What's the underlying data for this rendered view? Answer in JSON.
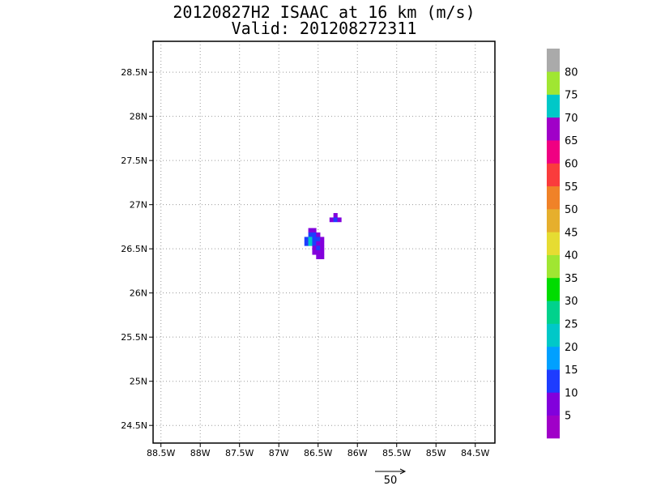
{
  "title": "20120827H2 ISAAC at 16 km (m/s)",
  "subtitle": "Valid: 201208272311",
  "chart_data": {
    "type": "heatmap",
    "title": "20120827H2 ISAAC at 16 km (m/s)",
    "subtitle": "Valid: 201208272311",
    "xlabel": "",
    "ylabel": "",
    "xlim": [
      -88.6,
      -84.25
    ],
    "ylim": [
      24.3,
      28.85
    ],
    "grid": true,
    "x_ticks": [
      {
        "value": -88.5,
        "label": "88.5W"
      },
      {
        "value": -88.0,
        "label": "88W"
      },
      {
        "value": -87.5,
        "label": "87.5W"
      },
      {
        "value": -87.0,
        "label": "87W"
      },
      {
        "value": -86.5,
        "label": "86.5W"
      },
      {
        "value": -86.0,
        "label": "86W"
      },
      {
        "value": -85.5,
        "label": "85.5W"
      },
      {
        "value": -85.0,
        "label": "85W"
      },
      {
        "value": -84.5,
        "label": "84.5W"
      }
    ],
    "y_ticks": [
      {
        "value": 24.5,
        "label": "24.5N"
      },
      {
        "value": 25.0,
        "label": "25N"
      },
      {
        "value": 25.5,
        "label": "25.5N"
      },
      {
        "value": 26.0,
        "label": "26N"
      },
      {
        "value": 26.5,
        "label": "26.5N"
      },
      {
        "value": 27.0,
        "label": "27N"
      },
      {
        "value": 27.5,
        "label": "27.5N"
      },
      {
        "value": 28.0,
        "label": "28N"
      },
      {
        "value": 28.5,
        "label": "28.5N"
      }
    ],
    "cells": [
      {
        "lon": -86.6,
        "lat": 26.71,
        "value": 7
      },
      {
        "lon": -86.55,
        "lat": 26.71,
        "value": 7
      },
      {
        "lon": -86.6,
        "lat": 26.66,
        "value": 12
      },
      {
        "lon": -86.55,
        "lat": 26.66,
        "value": 12
      },
      {
        "lon": -86.5,
        "lat": 26.66,
        "value": 7
      },
      {
        "lon": -86.65,
        "lat": 26.61,
        "value": 12
      },
      {
        "lon": -86.6,
        "lat": 26.61,
        "value": 22
      },
      {
        "lon": -86.55,
        "lat": 26.61,
        "value": 12
      },
      {
        "lon": -86.5,
        "lat": 26.61,
        "value": 12
      },
      {
        "lon": -86.45,
        "lat": 26.61,
        "value": 7
      },
      {
        "lon": -86.65,
        "lat": 26.56,
        "value": 12
      },
      {
        "lon": -86.6,
        "lat": 26.56,
        "value": 22
      },
      {
        "lon": -86.55,
        "lat": 26.56,
        "value": 12
      },
      {
        "lon": -86.5,
        "lat": 26.56,
        "value": 7
      },
      {
        "lon": -86.45,
        "lat": 26.56,
        "value": 7
      },
      {
        "lon": -86.55,
        "lat": 26.51,
        "value": 7
      },
      {
        "lon": -86.5,
        "lat": 26.51,
        "value": 12
      },
      {
        "lon": -86.45,
        "lat": 26.51,
        "value": 7
      },
      {
        "lon": -86.55,
        "lat": 26.46,
        "value": 7
      },
      {
        "lon": -86.5,
        "lat": 26.46,
        "value": 7
      },
      {
        "lon": -86.45,
        "lat": 26.46,
        "value": 7
      },
      {
        "lon": -86.5,
        "lat": 26.41,
        "value": 7
      },
      {
        "lon": -86.45,
        "lat": 26.41,
        "value": 7
      },
      {
        "lon": -86.28,
        "lat": 26.88,
        "value": 7
      },
      {
        "lon": -86.33,
        "lat": 26.83,
        "value": 7
      },
      {
        "lon": -86.28,
        "lat": 26.83,
        "value": 12
      },
      {
        "lon": -86.23,
        "lat": 26.83,
        "value": 7
      }
    ],
    "colorbar": {
      "labels": [
        "5",
        "10",
        "15",
        "20",
        "25",
        "30",
        "35",
        "40",
        "45",
        "50",
        "55",
        "60",
        "65",
        "70",
        "75",
        "80"
      ],
      "colors": [
        "#a000c8",
        "#8200dc",
        "#1e3cff",
        "#00a0ff",
        "#00c8c8",
        "#00d28c",
        "#00dc00",
        "#a0e632",
        "#e6dc32",
        "#e6af2d",
        "#f08228",
        "#fa3c3c",
        "#f00082",
        "#a000c8",
        "#00c8c8",
        "#a0e632",
        "#aaaaaa"
      ]
    },
    "reference_vector": {
      "label": "50",
      "value": 50
    }
  }
}
